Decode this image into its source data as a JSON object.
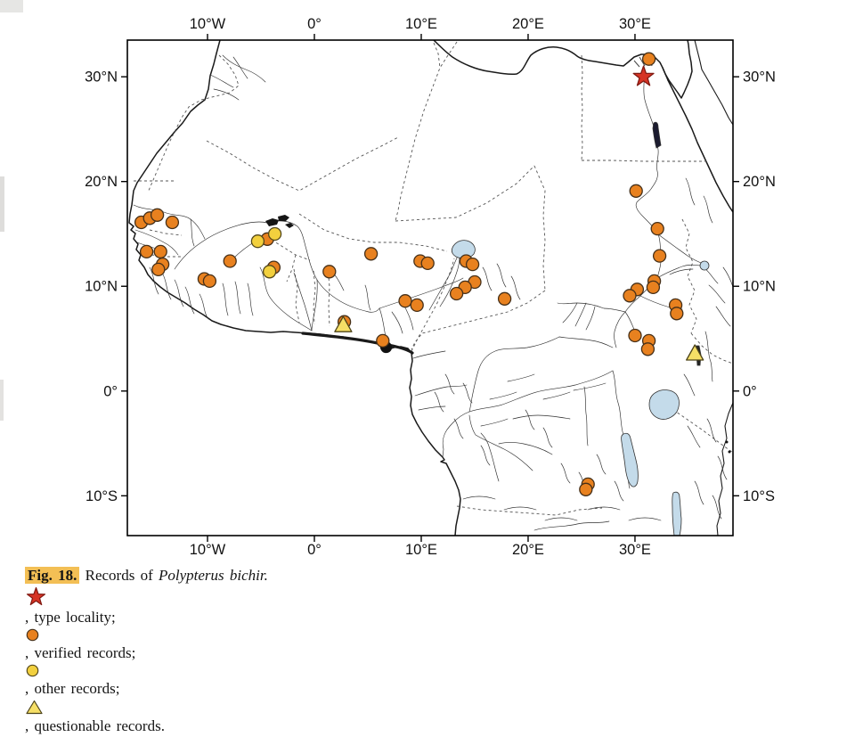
{
  "caption": {
    "label": "Fig. 18.",
    "records_of": "Records of",
    "species": "Polypterus bichir.",
    "type_locality_text": ", type locality;",
    "verified_text": ", verified records;",
    "other_text": ", other records;",
    "questionable_text": ", questionable records."
  },
  "map": {
    "x_ticks": [
      {
        "lon": -10,
        "label": "10°W"
      },
      {
        "lon": 0,
        "label": "0°"
      },
      {
        "lon": 10,
        "label": "10°E"
      },
      {
        "lon": 20,
        "label": "20°E"
      },
      {
        "lon": 30,
        "label": "30°E"
      }
    ],
    "y_ticks": [
      {
        "lat": 30,
        "label": "30°N"
      },
      {
        "lat": 20,
        "label": "20°N"
      },
      {
        "lat": 10,
        "label": "10°N"
      },
      {
        "lat": 0,
        "label": "0°"
      },
      {
        "lat": -10,
        "label": "10°S"
      }
    ],
    "calibration": {
      "lon_min": -17.5,
      "lon_max": 39.17,
      "lat_min": -13.8,
      "lat_max": 33.5
    },
    "colors": {
      "verified": "#e8811f",
      "other": "#f2d03e",
      "questionable": "#f6df66",
      "type_locality": "#d63425",
      "lake": "#c4dbea",
      "highlight": "#f3bf55"
    },
    "markers": {
      "type_locality": [
        {
          "lon": 30.8,
          "lat": 30.0
        }
      ],
      "verified_records": [
        {
          "lon": -16.2,
          "lat": 16.1
        },
        {
          "lon": -15.4,
          "lat": 16.5
        },
        {
          "lon": -14.7,
          "lat": 16.8
        },
        {
          "lon": -13.3,
          "lat": 16.1
        },
        {
          "lon": -15.7,
          "lat": 13.3
        },
        {
          "lon": -14.4,
          "lat": 13.3
        },
        {
          "lon": -14.2,
          "lat": 12.1
        },
        {
          "lon": -14.6,
          "lat": 11.6
        },
        {
          "lon": -10.3,
          "lat": 10.7
        },
        {
          "lon": -9.8,
          "lat": 10.5
        },
        {
          "lon": -7.9,
          "lat": 12.4
        },
        {
          "lon": -4.4,
          "lat": 14.5
        },
        {
          "lon": -3.8,
          "lat": 11.8
        },
        {
          "lon": 1.4,
          "lat": 11.4
        },
        {
          "lon": 2.8,
          "lat": 6.6
        },
        {
          "lon": 5.3,
          "lat": 13.1
        },
        {
          "lon": 6.4,
          "lat": 4.8
        },
        {
          "lon": 8.5,
          "lat": 8.6
        },
        {
          "lon": 9.6,
          "lat": 8.2
        },
        {
          "lon": 9.9,
          "lat": 12.4
        },
        {
          "lon": 10.6,
          "lat": 12.2
        },
        {
          "lon": 14.2,
          "lat": 12.4
        },
        {
          "lon": 14.8,
          "lat": 12.1
        },
        {
          "lon": 15.0,
          "lat": 10.4
        },
        {
          "lon": 14.1,
          "lat": 9.9
        },
        {
          "lon": 13.3,
          "lat": 9.3
        },
        {
          "lon": 17.8,
          "lat": 8.8
        },
        {
          "lon": 30.1,
          "lat": 19.1
        },
        {
          "lon": 32.1,
          "lat": 15.5
        },
        {
          "lon": 32.3,
          "lat": 12.9
        },
        {
          "lon": 31.8,
          "lat": 10.5
        },
        {
          "lon": 31.7,
          "lat": 9.9
        },
        {
          "lon": 30.2,
          "lat": 9.7
        },
        {
          "lon": 29.5,
          "lat": 9.1
        },
        {
          "lon": 33.8,
          "lat": 8.2
        },
        {
          "lon": 33.9,
          "lat": 7.4
        },
        {
          "lon": 30.0,
          "lat": 5.3
        },
        {
          "lon": 31.3,
          "lat": 4.8
        },
        {
          "lon": 31.2,
          "lat": 4.0
        },
        {
          "lon": 31.3,
          "lat": 31.7
        },
        {
          "lon": 25.6,
          "lat": -8.9
        },
        {
          "lon": 25.4,
          "lat": -9.4
        }
      ],
      "other_records": [
        {
          "lon": -5.3,
          "lat": 14.3
        },
        {
          "lon": -3.7,
          "lat": 15.0
        },
        {
          "lon": -4.2,
          "lat": 11.4
        }
      ],
      "questionable_records": [
        {
          "lon": 2.7,
          "lat": 6.3
        },
        {
          "lon": 35.6,
          "lat": 3.6
        }
      ]
    }
  }
}
